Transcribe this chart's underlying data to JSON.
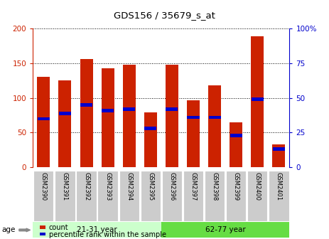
{
  "title": "GDS156 / 35679_s_at",
  "samples": [
    "GSM2390",
    "GSM2391",
    "GSM2392",
    "GSM2393",
    "GSM2394",
    "GSM2395",
    "GSM2396",
    "GSM2397",
    "GSM2398",
    "GSM2399",
    "GSM2400",
    "GSM2401"
  ],
  "count_values": [
    131,
    125,
    156,
    143,
    148,
    79,
    148,
    97,
    118,
    65,
    189,
    33
  ],
  "percentile_values": [
    35,
    39,
    45,
    41,
    42,
    28,
    42,
    36,
    36,
    23,
    49,
    13
  ],
  "ylim_left": [
    0,
    200
  ],
  "ylim_right": [
    0,
    100
  ],
  "yticks_left": [
    0,
    50,
    100,
    150,
    200
  ],
  "yticks_right": [
    0,
    25,
    50,
    75,
    100
  ],
  "group1_label": "21-31 year",
  "group1_samples": 6,
  "group2_label": "62-77 year",
  "group2_samples": 6,
  "age_label": "age",
  "bar_color": "#cc2200",
  "percentile_color": "#0000cc",
  "group1_bg": "#ccffcc",
  "group2_bg": "#66dd44",
  "tick_label_bg": "#cccccc",
  "legend_count": "count",
  "legend_percentile": "percentile rank within the sample",
  "bar_width": 0.6,
  "fig_width": 4.63,
  "fig_height": 3.36
}
